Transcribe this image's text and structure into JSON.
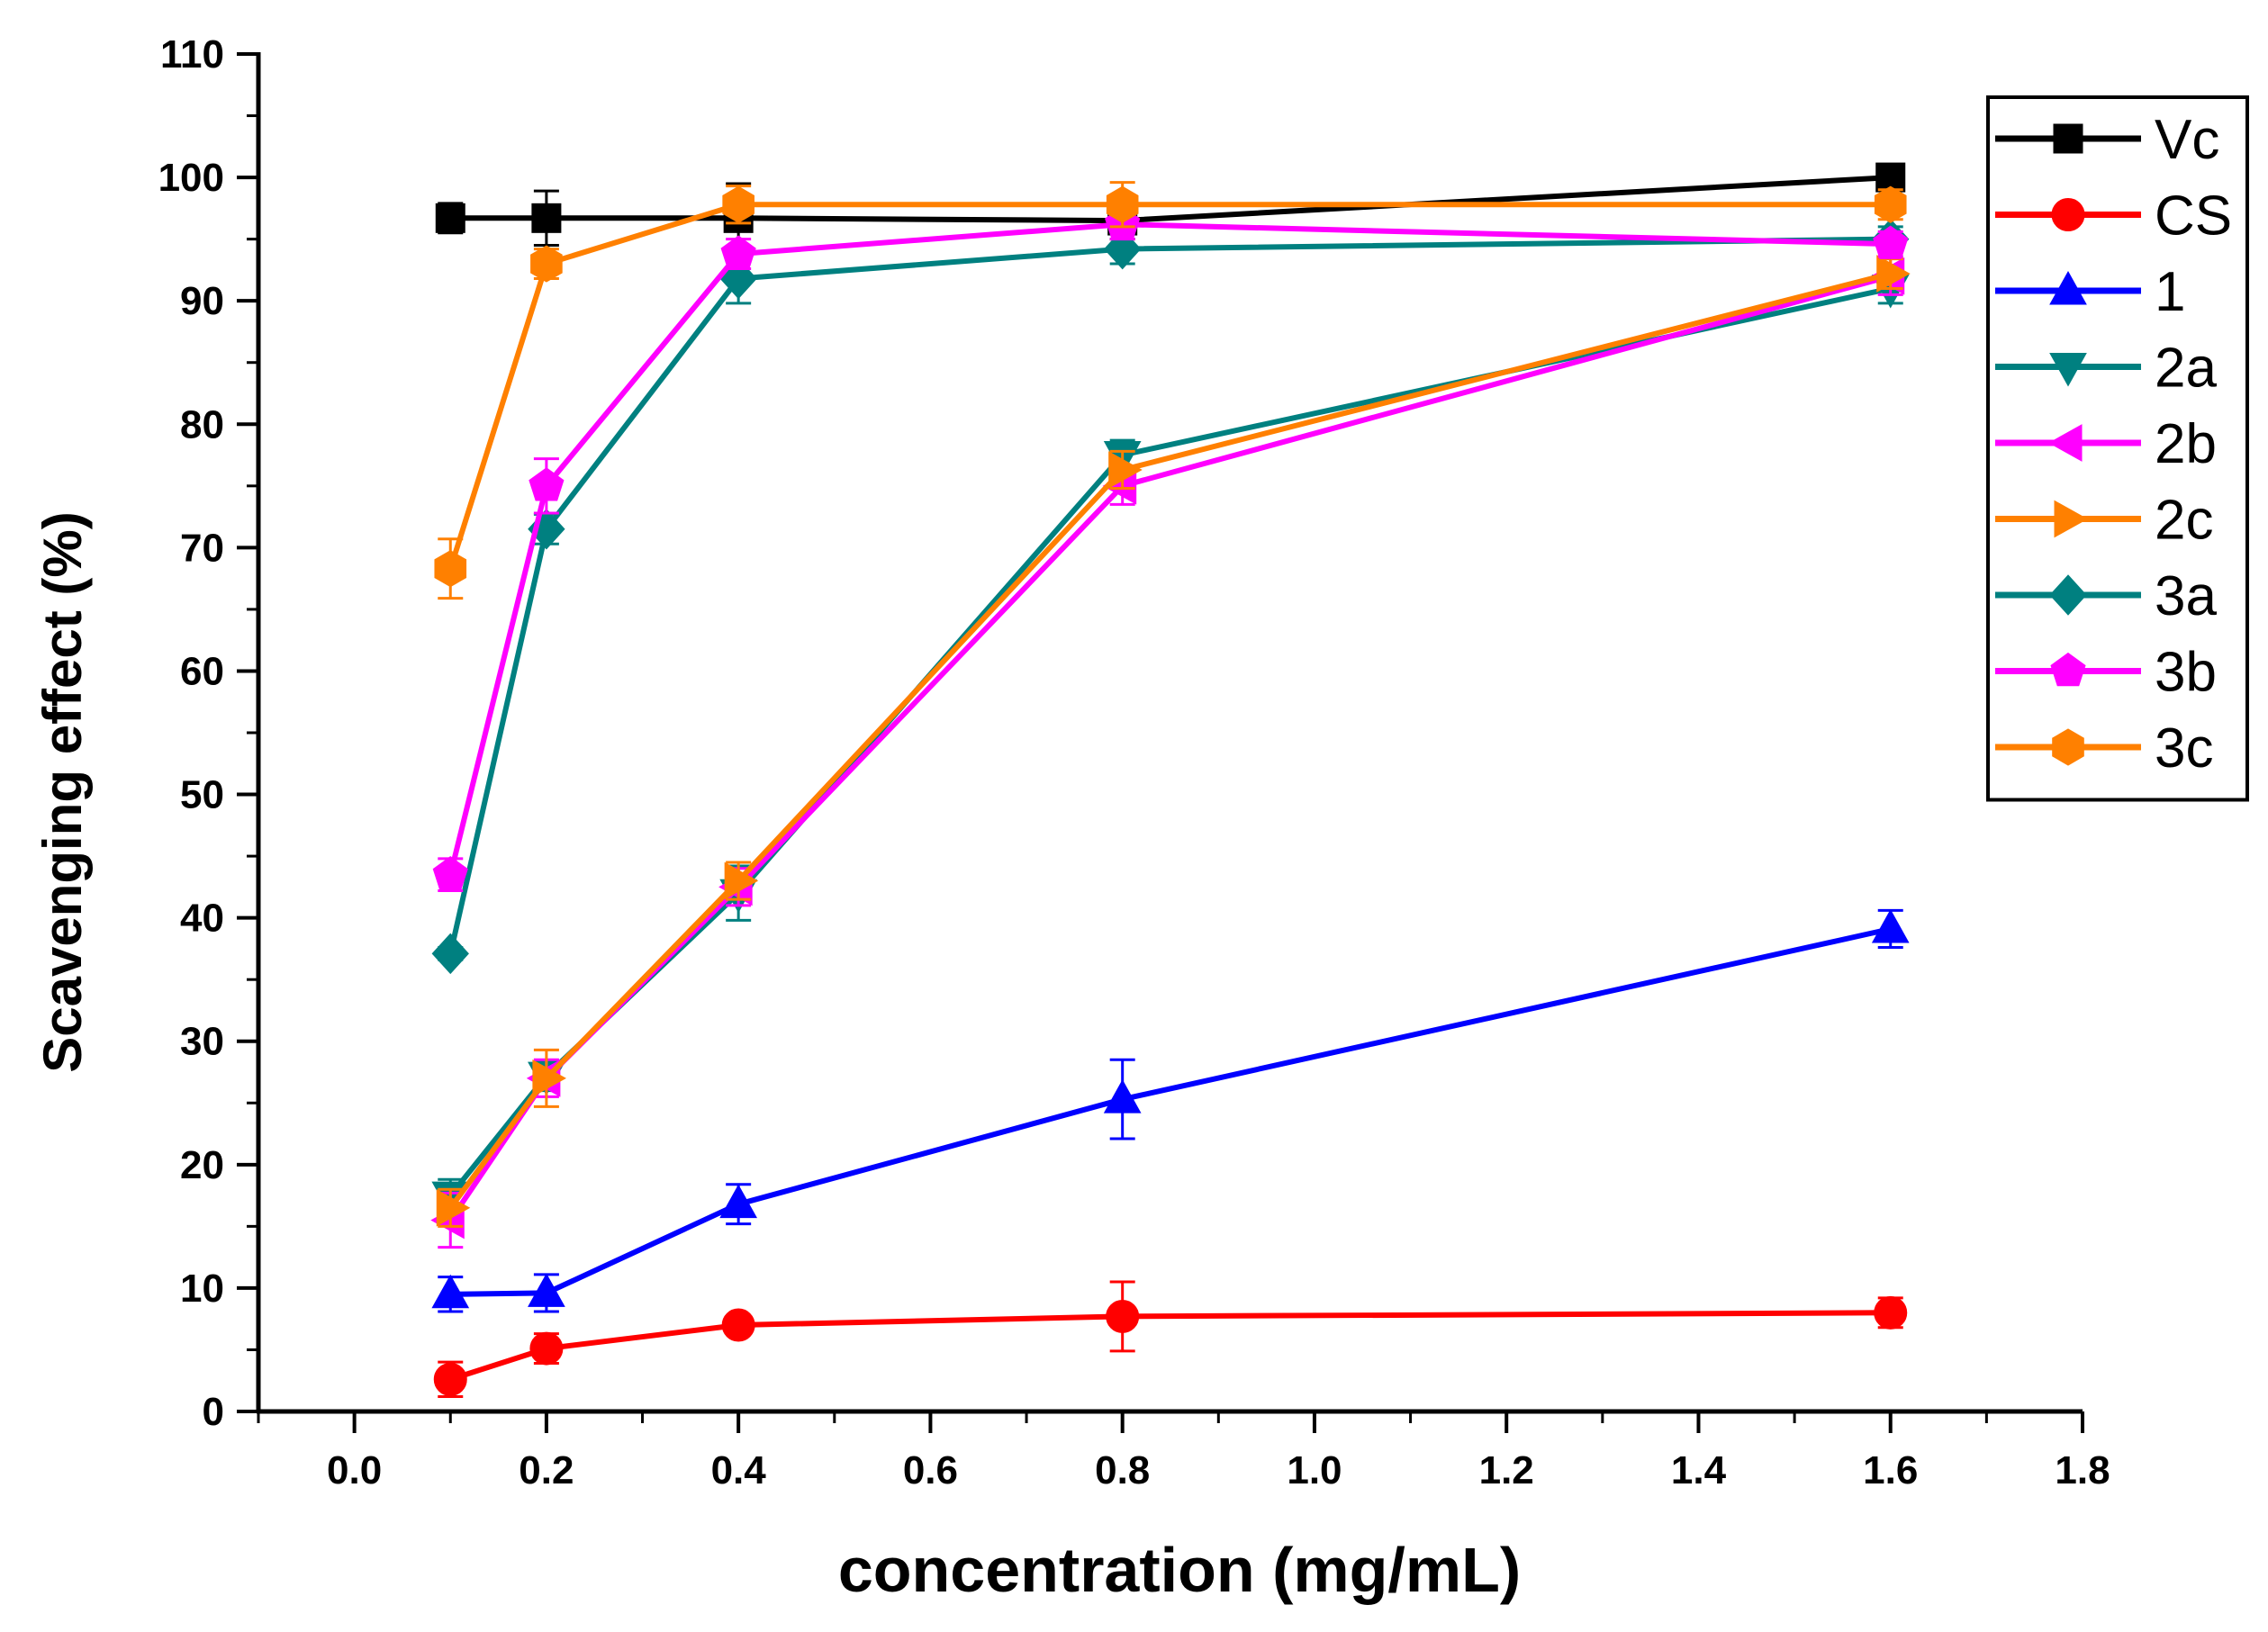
{
  "chart_data": {
    "type": "line",
    "xlabel": "concentration (mg/mL)",
    "ylabel": "Scavenging effect (%)",
    "xlim": [
      -0.1,
      1.8
    ],
    "ylim": [
      0,
      110
    ],
    "xticks": [
      "0.0",
      "0.2",
      "0.4",
      "0.6",
      "0.8",
      "1.0",
      "1.2",
      "1.4",
      "1.6",
      "1.8"
    ],
    "yticks": [
      "0",
      "10",
      "20",
      "30",
      "40",
      "50",
      "60",
      "70",
      "80",
      "90",
      "100",
      "110"
    ],
    "x": [
      0.1,
      0.2,
      0.4,
      0.8,
      1.6
    ],
    "legend_position": "top-right",
    "series": [
      {
        "name": "Vc",
        "color": "#000000",
        "marker": "square",
        "values": [
          96.7,
          96.7,
          96.7,
          96.5,
          100.0
        ],
        "errors": [
          1.2,
          2.2,
          2.8,
          1.5,
          1.0
        ]
      },
      {
        "name": "CS",
        "color": "#ff0000",
        "marker": "circle",
        "values": [
          2.6,
          5.1,
          7.0,
          7.7,
          8.0
        ],
        "errors": [
          1.4,
          1.2,
          0.6,
          2.8,
          1.2
        ]
      },
      {
        "name": "1",
        "color": "#0000ff",
        "marker": "triangle-up",
        "values": [
          9.5,
          9.6,
          16.8,
          25.3,
          39.1
        ],
        "errors": [
          1.4,
          1.5,
          1.6,
          3.2,
          1.5
        ]
      },
      {
        "name": "2a",
        "color": "#008080",
        "marker": "triangle-down",
        "values": [
          17.5,
          27.2,
          42.0,
          77.5,
          91.0
        ],
        "errors": [
          1.3,
          1.2,
          2.2,
          1.2,
          1.2
        ]
      },
      {
        "name": "2b",
        "color": "#ff00ff",
        "marker": "triangle-left",
        "values": [
          15.5,
          27.0,
          42.5,
          75.0,
          92.0
        ],
        "errors": [
          2.2,
          1.5,
          1.5,
          1.5,
          1.5
        ]
      },
      {
        "name": "2c",
        "color": "#ff8000",
        "marker": "triangle-right",
        "values": [
          16.5,
          27.0,
          43.0,
          76.3,
          92.2
        ],
        "errors": [
          1.5,
          2.3,
          1.5,
          1.5,
          1.2
        ]
      },
      {
        "name": "3a",
        "color": "#008080",
        "marker": "diamond",
        "values": [
          37.1,
          71.5,
          91.8,
          94.2,
          95.0
        ],
        "errors": [
          0.5,
          1.2,
          2.0,
          1.2,
          1.0
        ]
      },
      {
        "name": "3b",
        "color": "#ff00ff",
        "marker": "pentagon",
        "values": [
          43.5,
          75.0,
          93.8,
          96.2,
          94.6
        ],
        "errors": [
          1.3,
          2.2,
          1.2,
          1.2,
          1.0
        ]
      },
      {
        "name": "3c",
        "color": "#ff8000",
        "marker": "hexagon",
        "values": [
          68.3,
          93.0,
          97.8,
          97.8,
          97.8
        ],
        "errors": [
          2.4,
          1.2,
          1.5,
          1.8,
          1.2
        ]
      }
    ]
  }
}
